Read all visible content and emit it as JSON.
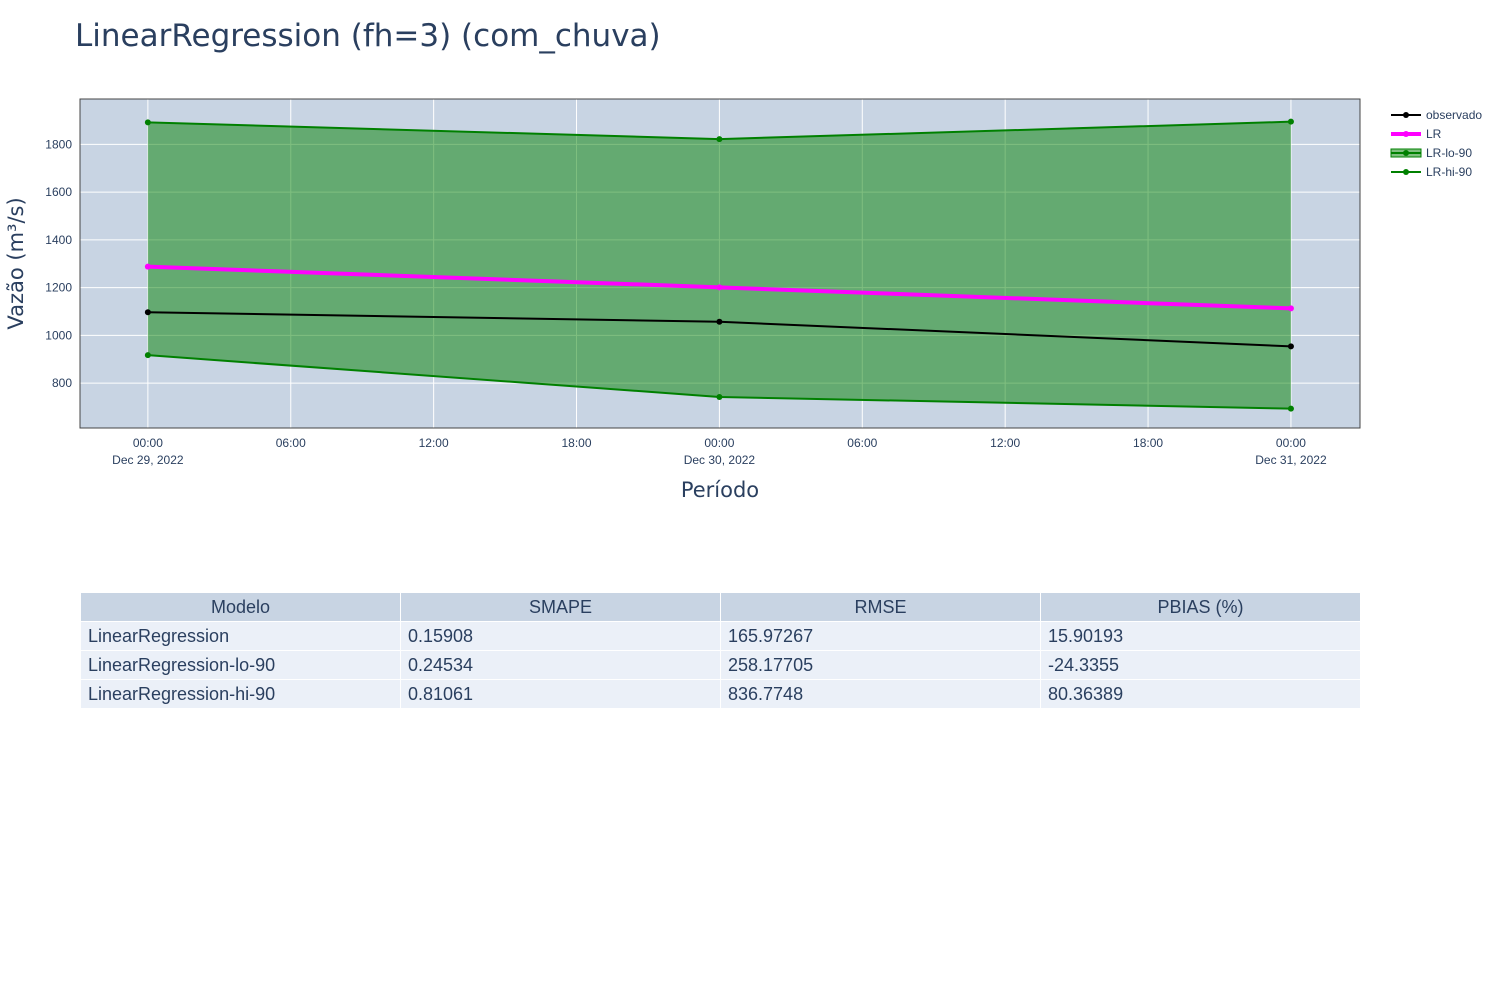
{
  "chart_data": {
    "type": "line",
    "title": "LinearRegression (fh=3) (com_chuva)",
    "xlabel": "Período",
    "ylabel": "Vazão (m³/s)",
    "x": [
      "2022-12-29 00:00",
      "2022-12-30 00:00",
      "2022-12-31 00:00"
    ],
    "x_ticks": [
      {
        "t": 0,
        "line1": "00:00",
        "line2": "Dec 29, 2022"
      },
      {
        "t": 6,
        "line1": "06:00",
        "line2": ""
      },
      {
        "t": 12,
        "line1": "12:00",
        "line2": ""
      },
      {
        "t": 18,
        "line1": "18:00",
        "line2": ""
      },
      {
        "t": 24,
        "line1": "00:00",
        "line2": "Dec 30, 2022"
      },
      {
        "t": 30,
        "line1": "06:00",
        "line2": ""
      },
      {
        "t": 36,
        "line1": "12:00",
        "line2": ""
      },
      {
        "t": 42,
        "line1": "18:00",
        "line2": ""
      },
      {
        "t": 48,
        "line1": "00:00",
        "line2": "Dec 31, 2022"
      }
    ],
    "x_hours": [
      0,
      24,
      48
    ],
    "y_ticks": [
      800,
      1000,
      1200,
      1400,
      1600,
      1800
    ],
    "xlim_hours": [
      -2.85,
      50.9
    ],
    "ylim": [
      612,
      1990
    ],
    "legend_position": "top-right",
    "grid": true,
    "series": [
      {
        "name": "observado",
        "values": [
          1097,
          1057,
          954
        ],
        "color": "#000000",
        "width": 2
      },
      {
        "name": "LR",
        "values": [
          1288,
          1201,
          1113
        ],
        "color": "#ff00ff",
        "width": 4
      },
      {
        "name": "LR-lo-90",
        "values": [
          917,
          742,
          693
        ],
        "color": "#008000",
        "width": 2,
        "fill": true
      },
      {
        "name": "LR-hi-90",
        "values": [
          1892,
          1822,
          1895
        ],
        "color": "#008000",
        "width": 2
      }
    ],
    "colors": {
      "plot_bg": "#c8d4e3",
      "band_fill": "rgba(0,128,0,0.5)",
      "grid": "#ffffff"
    }
  },
  "table": {
    "headers": [
      "Modelo",
      "SMAPE",
      "RMSE",
      "PBIAS (%)"
    ],
    "rows": [
      [
        "LinearRegression",
        "0.15908",
        "165.97267",
        "15.90193"
      ],
      [
        "LinearRegression-lo-90",
        "0.24534",
        "258.17705",
        "-24.3355"
      ],
      [
        "LinearRegression-hi-90",
        "0.81061",
        "836.7748",
        "80.36389"
      ]
    ]
  }
}
